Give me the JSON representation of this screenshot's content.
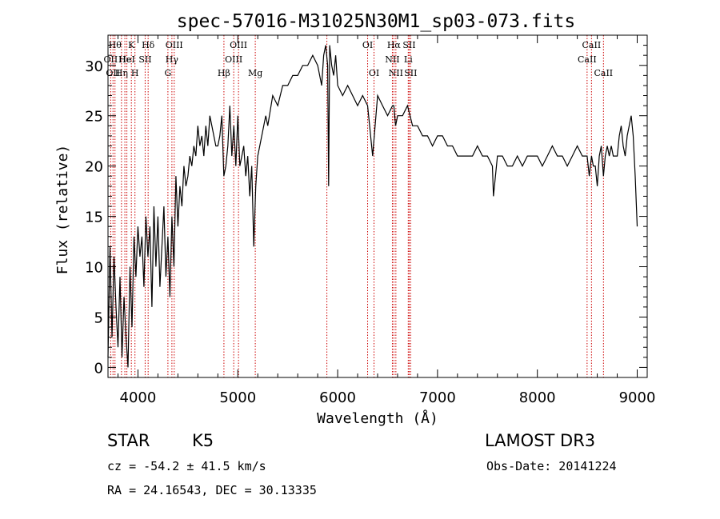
{
  "chart_data": {
    "type": "line",
    "title": "spec-57016-M31025N30M1_sp03-073.fits",
    "xlabel": "Wavelength (Å)",
    "ylabel": "Flux (relative)",
    "xlim": [
      3700,
      9100
    ],
    "ylim": [
      -1,
      33
    ],
    "xticks": [
      4000,
      5000,
      6000,
      7000,
      8000,
      9000
    ],
    "yticks": [
      0,
      5,
      10,
      15,
      20,
      25,
      30
    ],
    "grid": false,
    "series": [
      {
        "color": "#000000",
        "x": [
          3700,
          3720,
          3740,
          3760,
          3780,
          3800,
          3820,
          3840,
          3860,
          3880,
          3900,
          3920,
          3940,
          3960,
          3980,
          4000,
          4020,
          4040,
          4060,
          4080,
          4100,
          4120,
          4140,
          4160,
          4180,
          4200,
          4220,
          4240,
          4260,
          4280,
          4300,
          4320,
          4340,
          4360,
          4380,
          4400,
          4420,
          4440,
          4460,
          4480,
          4500,
          4520,
          4540,
          4560,
          4580,
          4600,
          4620,
          4640,
          4660,
          4680,
          4700,
          4720,
          4740,
          4760,
          4780,
          4800,
          4820,
          4840,
          4860,
          4880,
          4900,
          4920,
          4940,
          4960,
          4980,
          5000,
          5020,
          5040,
          5060,
          5080,
          5100,
          5120,
          5140,
          5160,
          5180,
          5200,
          5220,
          5240,
          5260,
          5280,
          5300,
          5350,
          5400,
          5450,
          5500,
          5550,
          5600,
          5650,
          5700,
          5750,
          5800,
          5820,
          5840,
          5860,
          5880,
          5900,
          5910,
          5920,
          5940,
          5960,
          5980,
          6000,
          6050,
          6100,
          6150,
          6200,
          6250,
          6300,
          6350,
          6400,
          6450,
          6500,
          6550,
          6563,
          6580,
          6600,
          6650,
          6700,
          6750,
          6800,
          6850,
          6900,
          6950,
          7000,
          7050,
          7100,
          7150,
          7200,
          7250,
          7300,
          7350,
          7400,
          7450,
          7500,
          7550,
          7560,
          7600,
          7650,
          7700,
          7750,
          7800,
          7850,
          7900,
          7950,
          8000,
          8050,
          8100,
          8150,
          8200,
          8250,
          8300,
          8350,
          8400,
          8450,
          8498,
          8520,
          8542,
          8560,
          8580,
          8600,
          8620,
          8640,
          8662,
          8680,
          8700,
          8720,
          8740,
          8760,
          8780,
          8800,
          8820,
          8840,
          8860,
          8880,
          8900,
          8920,
          8940,
          8960,
          8980,
          9000
        ],
        "y": [
          1,
          12,
          3,
          11,
          6,
          2,
          9,
          1,
          7,
          3,
          0,
          10,
          4,
          13,
          9,
          14,
          11,
          13,
          8,
          15,
          11,
          14,
          6,
          16,
          10,
          15,
          8,
          12,
          16,
          9,
          13,
          7,
          15,
          10,
          19,
          14,
          18,
          16,
          20,
          18,
          19,
          21,
          20,
          22,
          21,
          24,
          22,
          23,
          21,
          24,
          22,
          25,
          24,
          23,
          22,
          22,
          23,
          25,
          19,
          20,
          22,
          26,
          21,
          24,
          20,
          25,
          20,
          21,
          22,
          19,
          21,
          17,
          20,
          12,
          18,
          21,
          22,
          23,
          24,
          25,
          24,
          27,
          26,
          28,
          28,
          29,
          29,
          30,
          30,
          31,
          30,
          29,
          28,
          31,
          32,
          30,
          18,
          32,
          30,
          29,
          31,
          28,
          27,
          28,
          27,
          26,
          27,
          26,
          21,
          27,
          26,
          25,
          26,
          26,
          24,
          25,
          25,
          26,
          24,
          24,
          23,
          23,
          22,
          23,
          23,
          22,
          22,
          21,
          21,
          21,
          21,
          22,
          21,
          21,
          20,
          17,
          21,
          21,
          20,
          20,
          21,
          20,
          21,
          21,
          21,
          20,
          21,
          22,
          21,
          21,
          20,
          21,
          22,
          21,
          21,
          19,
          21,
          20,
          20,
          18,
          21,
          22,
          19,
          21,
          22,
          21,
          22,
          21,
          21,
          21,
          23,
          24,
          22,
          21,
          23,
          24,
          25,
          23,
          19,
          14
        ]
      }
    ],
    "spectral_lines": [
      {
        "x": 3727,
        "label": "OII",
        "row": 2
      },
      {
        "x": 3750,
        "label": "OII",
        "row": 3
      },
      {
        "x": 3770,
        "label": "Hθ",
        "row": 1
      },
      {
        "x": 3835,
        "label": "Hη",
        "row": 3
      },
      {
        "x": 3869,
        "label": "He",
        "row": 2
      },
      {
        "x": 3889,
        "label": "HeI",
        "row": 2
      },
      {
        "x": 3934,
        "label": "K",
        "row": 1
      },
      {
        "x": 3970,
        "label": "H",
        "row": 3
      },
      {
        "x": 4072,
        "label": "SII",
        "row": 2
      },
      {
        "x": 4102,
        "label": "Hδ",
        "row": 1
      },
      {
        "x": 4300,
        "label": "G",
        "row": 3
      },
      {
        "x": 4340,
        "label": "Hγ",
        "row": 2
      },
      {
        "x": 4363,
        "label": "OIII",
        "row": 1
      },
      {
        "x": 4861,
        "label": "Hβ",
        "row": 3
      },
      {
        "x": 4959,
        "label": "OIII",
        "row": 2
      },
      {
        "x": 5007,
        "label": "OIII",
        "row": 1
      },
      {
        "x": 5175,
        "label": "Mg",
        "row": 3
      },
      {
        "x": 5892,
        "label": "",
        "row": 0
      },
      {
        "x": 6300,
        "label": "OI",
        "row": 1
      },
      {
        "x": 6364,
        "label": "OI",
        "row": 3
      },
      {
        "x": 6548,
        "label": "NII",
        "row": 2
      },
      {
        "x": 6563,
        "label": "Hα",
        "row": 1
      },
      {
        "x": 6583,
        "label": "NII",
        "row": 3
      },
      {
        "x": 6707,
        "label": "Li",
        "row": 2
      },
      {
        "x": 6716,
        "label": "SII",
        "row": 1
      },
      {
        "x": 6731,
        "label": "SII",
        "row": 3
      },
      {
        "x": 8498,
        "label": "CaII",
        "row": 2
      },
      {
        "x": 8542,
        "label": "CaII",
        "row": 1
      },
      {
        "x": 8662,
        "label": "CaII",
        "row": 3
      }
    ],
    "line_color": "#cc0000"
  },
  "info": {
    "class": "STAR",
    "subclass": "K5",
    "survey": "LAMOST DR3",
    "cz": "cz = -54.2 ± 41.5 km/s",
    "obs_date": "Obs-Date: 20141224",
    "coords": "RA =  24.16543, DEC =  30.13335"
  }
}
